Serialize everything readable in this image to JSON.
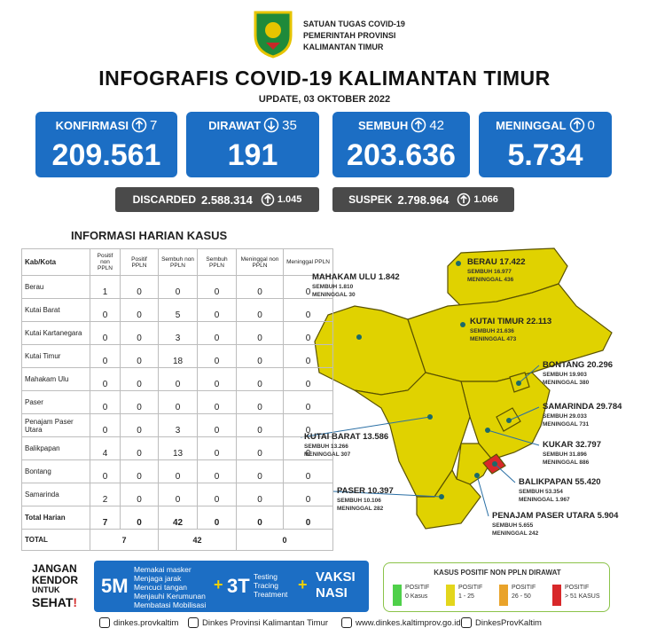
{
  "header": {
    "org_lines": [
      "SATUAN TUGAS COVID-19",
      "PEMERINTAH PROVINSI",
      "KALIMANTAN TIMUR"
    ],
    "title": "INFOGRAFIS COVID-19 KALIMANTAN TIMUR",
    "subtitle": "UPDATE, 03 OKTOBER 2022"
  },
  "stats": [
    {
      "label": "KONFIRMASI",
      "trend": "up",
      "change": 7,
      "total": "209.561"
    },
    {
      "label": "DIRAWAT",
      "trend": "down",
      "change": 35,
      "total": "191"
    },
    {
      "label": "SEMBUH",
      "trend": "up",
      "change": 42,
      "total": "203.636"
    },
    {
      "label": "MENINGGAL",
      "trend": "up",
      "change": 0,
      "total": "5.734"
    }
  ],
  "secondary": [
    {
      "label": "DISCARDED",
      "total": "2.588.314",
      "trend": "up",
      "change": "1.045"
    },
    {
      "label": "SUSPEK",
      "total": "2.798.964",
      "trend": "up",
      "change": "1.066"
    }
  ],
  "table": {
    "title": "INFORMASI HARIAN KASUS",
    "columns": [
      "Kab/Kota",
      "Positif non PPLN",
      "Positif PPLN",
      "Sembuh non PPLN",
      "Sembuh PPLN",
      "Meninggal non PPLN",
      "Meninggal PPLN"
    ],
    "rows": [
      [
        "Berau",
        1,
        0,
        0,
        0,
        0,
        0
      ],
      [
        "Kutai Barat",
        0,
        0,
        5,
        0,
        0,
        0
      ],
      [
        "Kutai Kartanegara",
        0,
        0,
        3,
        0,
        0,
        0
      ],
      [
        "Kutai Timur",
        0,
        0,
        18,
        0,
        0,
        0
      ],
      [
        "Mahakam Ulu",
        0,
        0,
        0,
        0,
        0,
        0
      ],
      [
        "Paser",
        0,
        0,
        0,
        0,
        0,
        0
      ],
      [
        "Penajam Paser Utara",
        0,
        0,
        3,
        0,
        0,
        0
      ],
      [
        "Balikpapan",
        4,
        0,
        13,
        0,
        0,
        0
      ],
      [
        "Bontang",
        0,
        0,
        0,
        0,
        0,
        0
      ],
      [
        "Samarinda",
        2,
        0,
        0,
        0,
        0,
        0
      ],
      [
        "Total Harian",
        7,
        0,
        42,
        0,
        0,
        0
      ]
    ],
    "total_row": {
      "label": "TOTAL",
      "positif": 7,
      "sembuh": 42,
      "meninggal": 0
    }
  },
  "map": {
    "regions": [
      {
        "name": "BERAU 17.422",
        "sembuh": "SEMBUH 16.977",
        "meninggal": "MENINGGAL 436",
        "color": "#e0d200"
      },
      {
        "name": "MAHAKAM ULU 1.842",
        "sembuh": "SEMBUH 1.810",
        "meninggal": "MENINGGAL 30",
        "color": "#e0d200"
      },
      {
        "name": "KUTAI TIMUR 22.113",
        "sembuh": "SEMBUH 21.636",
        "meninggal": "MENINGGAL 473",
        "color": "#e0d200"
      },
      {
        "name": "BONTANG 20.296",
        "sembuh": "SEMBUH 19.903",
        "meninggal": "MENINGGAL 380",
        "color": "#e0d200"
      },
      {
        "name": "SAMARINDA 29.784",
        "sembuh": "SEMBUH 29.033",
        "meninggal": "MENINGGAL 731",
        "color": "#e0d200"
      },
      {
        "name": "KUKAR 32.797",
        "sembuh": "SEMBUH 31.896",
        "meninggal": "MENINGGAL 886",
        "color": "#e0d200"
      },
      {
        "name": "BALIKPAPAN 55.420",
        "sembuh": "SEMBUH 53.354",
        "meninggal": "MENINGGAL 1.967",
        "color": "#d8282a"
      },
      {
        "name": "PENAJAM PASER UTARA 5.904",
        "sembuh": "SEMBUH 5.655",
        "meninggal": "MENINGGAL 242",
        "color": "#e0d200"
      },
      {
        "name": "PASER 10.397",
        "sembuh": "SEMBUH 10.106",
        "meninggal": "MENINGGAL 282",
        "color": "#e0d200"
      },
      {
        "name": "KUTAI BARAT 13.586",
        "sembuh": "SEMBUH 13.266",
        "meninggal": "MENINGGAL 307",
        "color": "#e0d200"
      }
    ]
  },
  "campaign": {
    "slogan": [
      "JANGAN",
      "KENDOR",
      "UNTUK",
      "SEHAT",
      "!"
    ],
    "m5": "5M",
    "m5_items": [
      "Memakai masker",
      "Menjaga jarak",
      "Mencuci tangan",
      "Menjauhi Kerumunan",
      "Membatasi Mobilisasi"
    ],
    "plus": "+",
    "t3": "3T",
    "t3_items": [
      "Testing",
      "Tracing",
      "Treatment"
    ],
    "vaksin": [
      "VAKSI",
      "NASI"
    ]
  },
  "legend": {
    "title": "KASUS POSITIF NON PPLN DIRAWAT",
    "items": [
      {
        "lines": [
          "POSITIF",
          "0 Kasus"
        ],
        "color": "#4fd04a"
      },
      {
        "lines": [
          "POSITIF",
          "1 - 25"
        ],
        "color": "#e3d61c"
      },
      {
        "lines": [
          "POSITIF",
          "26 - 50"
        ],
        "color": "#e9a32a"
      },
      {
        "lines": [
          "POSITIF",
          "> 51 KASUS"
        ],
        "color": "#d8282a"
      }
    ]
  },
  "social": [
    "dinkes.provkaltim",
    "Dinkes Provinsi Kalimantan Timur",
    "www.dinkes.kaltimprov.go.id",
    "DinkesProvKaltim"
  ]
}
